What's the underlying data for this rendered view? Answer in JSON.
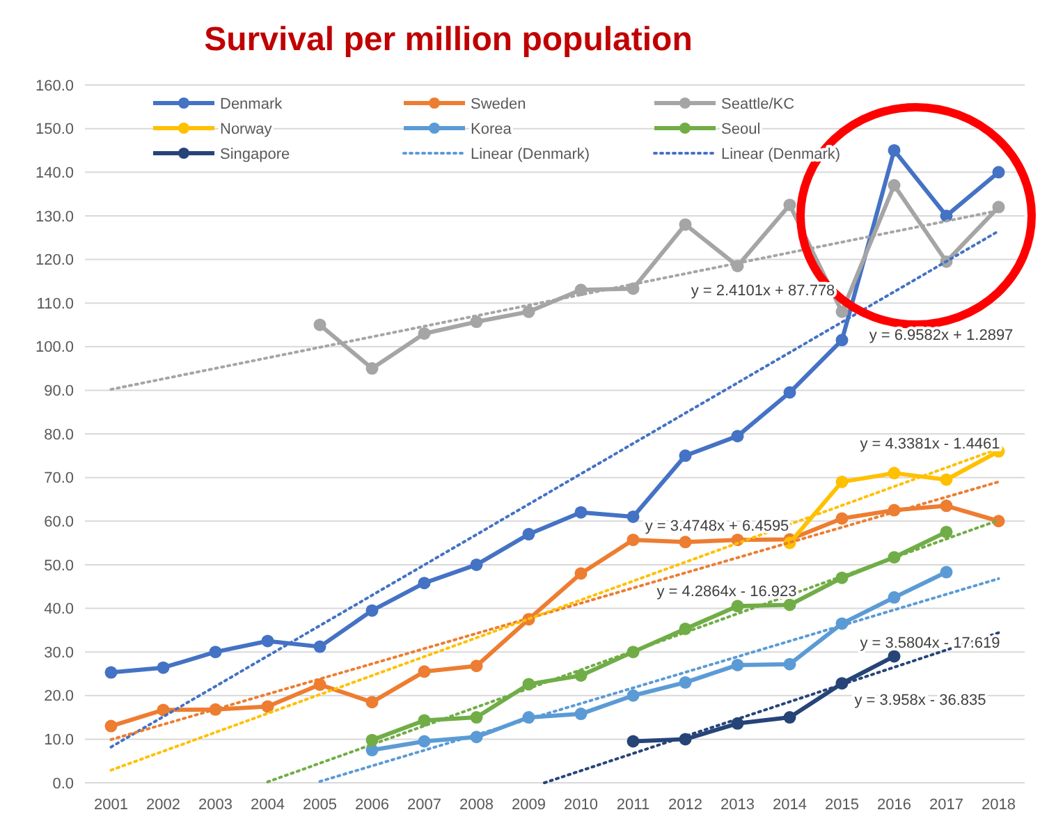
{
  "chart_data": {
    "type": "line",
    "title": "Survival per million population",
    "x": [
      2001,
      2002,
      2003,
      2004,
      2005,
      2006,
      2007,
      2008,
      2009,
      2010,
      2011,
      2012,
      2013,
      2014,
      2015,
      2016,
      2017,
      2018
    ],
    "xlim": [
      2000.5,
      2018.5
    ],
    "xticks": [
      2001,
      2002,
      2003,
      2004,
      2005,
      2006,
      2007,
      2008,
      2009,
      2010,
      2011,
      2012,
      2013,
      2014,
      2015,
      2016,
      2017,
      2018
    ],
    "ylim": [
      0,
      160
    ],
    "yticks": [
      {
        "value": 0,
        "label": "0.0"
      },
      {
        "value": 10,
        "label": "10.0"
      },
      {
        "value": 20,
        "label": "20.0"
      },
      {
        "value": 30,
        "label": "30.0"
      },
      {
        "value": 40,
        "label": "40.0"
      },
      {
        "value": 50,
        "label": "50.0"
      },
      {
        "value": 60,
        "label": "60.0"
      },
      {
        "value": 70,
        "label": "70.0"
      },
      {
        "value": 80,
        "label": "80.0"
      },
      {
        "value": 90,
        "label": "90.0"
      },
      {
        "value": 100,
        "label": "100.0"
      },
      {
        "value": 110,
        "label": "110.0"
      },
      {
        "value": 120,
        "label": "120.0"
      },
      {
        "value": 130,
        "label": "130.0"
      },
      {
        "value": 140,
        "label": "140.0"
      },
      {
        "value": 150,
        "label": "150.0"
      },
      {
        "value": 160,
        "label": "160.0"
      }
    ],
    "grid": "y",
    "legend": "top",
    "marker": "circle",
    "series": [
      {
        "name": "Denmark",
        "color": "#4472c4",
        "values": [
          25.3,
          26.4,
          30,
          32.5,
          31.2,
          39.5,
          45.8,
          50,
          57,
          62,
          61,
          75,
          79.5,
          89.5,
          101.5,
          145,
          130,
          140
        ]
      },
      {
        "name": "Sweden",
        "color": "#ed7d31",
        "values": [
          13,
          16.7,
          16.8,
          17.5,
          22.5,
          18.5,
          25.5,
          26.8,
          37.5,
          48,
          55.7,
          55.2,
          55.7,
          55.8,
          60.6,
          62.5,
          63.5,
          60
        ]
      },
      {
        "name": "Seattle/KC",
        "color": "#a5a5a5",
        "values": [
          null,
          null,
          null,
          null,
          105,
          95,
          103,
          105.7,
          108,
          113,
          113.3,
          128,
          118.5,
          132.5,
          108,
          137,
          119.5,
          132
        ]
      },
      {
        "name": "Norway",
        "color": "#ffc000",
        "values": [
          null,
          null,
          null,
          null,
          null,
          null,
          null,
          null,
          null,
          null,
          null,
          null,
          null,
          55,
          69,
          71,
          69.5,
          76
        ]
      },
      {
        "name": "Korea",
        "color": "#5b9bd5",
        "values": [
          null,
          null,
          null,
          null,
          null,
          7.5,
          9.5,
          10.5,
          15,
          15.8,
          20,
          23,
          27,
          27.2,
          36.5,
          42.5,
          48.3,
          null
        ]
      },
      {
        "name": "Seoul",
        "color": "#70ad47",
        "values": [
          null,
          null,
          null,
          null,
          null,
          9.8,
          14.3,
          15,
          22.6,
          24.6,
          30,
          35.3,
          40.5,
          40.8,
          47,
          51.7,
          57.5,
          null
        ]
      },
      {
        "name": "Singapore",
        "color": "#264478",
        "values": [
          null,
          null,
          null,
          null,
          null,
          null,
          null,
          null,
          null,
          null,
          9.5,
          10,
          13.6,
          15,
          22.8,
          29,
          null,
          null
        ]
      },
      {
        "name": "Linear (Denmark)",
        "color": "#5b9bd5",
        "type": "line",
        "marker": "none",
        "line_style": "dotted",
        "x": [
          2005,
          2018
        ],
        "values": [
          0.3,
          46.8
        ]
      },
      {
        "name": "Linear (Denmark)",
        "color": "#4472c4",
        "type": "line",
        "marker": "none",
        "line_style": "dotted",
        "x": [
          2001,
          2018
        ],
        "values": [
          8.2,
          126.5
        ]
      },
      {
        "color": "#a5a5a5",
        "type": "line",
        "marker": "none",
        "line_style": "dotted",
        "x": [
          2001,
          2018
        ],
        "values": [
          90.2,
          131.2
        ]
      },
      {
        "color": "#ed7d31",
        "type": "line",
        "marker": "none",
        "line_style": "dotted",
        "x": [
          2001,
          2018
        ],
        "values": [
          9.9,
          69
        ]
      },
      {
        "color": "#ffc000",
        "type": "line",
        "marker": "none",
        "line_style": "dotted",
        "x": [
          2001,
          2018
        ],
        "values": [
          2.9,
          76.6
        ]
      },
      {
        "color": "#70ad47",
        "type": "line",
        "marker": "none",
        "line_style": "dotted",
        "x": [
          2004,
          2018
        ],
        "values": [
          0.2,
          60.2
        ]
      },
      {
        "color": "#264478",
        "type": "line",
        "marker": "none",
        "line_style": "dotted",
        "x": [
          2009.3,
          2018
        ],
        "values": [
          0,
          34.4
        ]
      }
    ],
    "annotations": [
      "y = 2.4101x + 87.778",
      "y = 6.9582x + 1.2897",
      "y = 4.3381x - 1.4461",
      "y = 3.4748x + 6.4595",
      "y = 4.2864x - 16.923",
      "y = 3.5804x - 17.619",
      "y = 3.958x - 36.835"
    ]
  }
}
